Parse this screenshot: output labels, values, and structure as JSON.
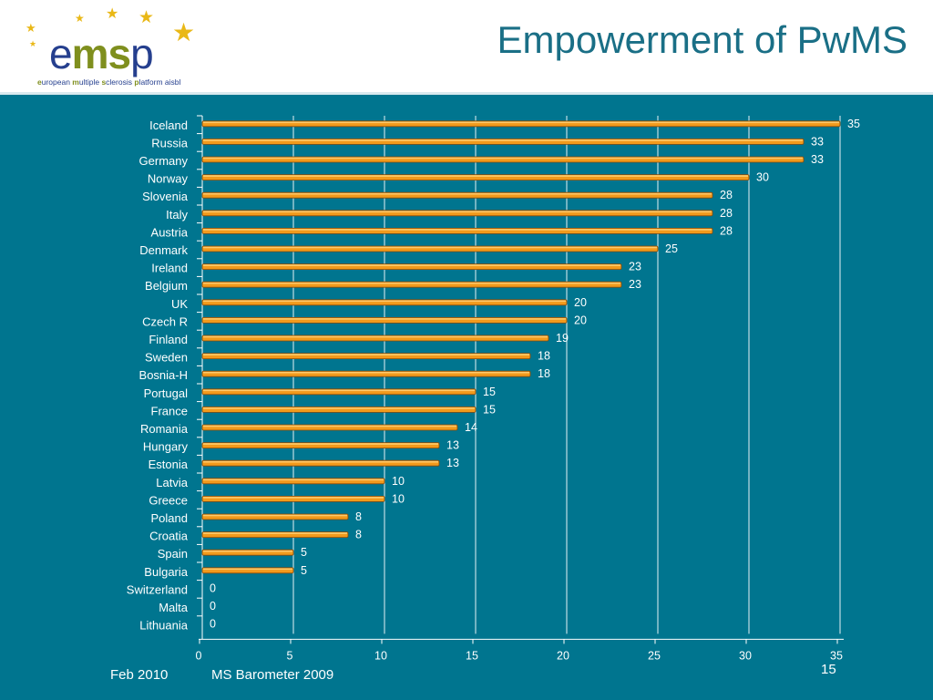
{
  "header": {
    "title": "Empowerment of PwMS",
    "logo": {
      "part_e": "e",
      "part_ms": "ms",
      "part_p": "p",
      "tagline": [
        {
          "b": "e",
          "t": "uropean "
        },
        {
          "b": "m",
          "t": "ultiple "
        },
        {
          "b": "s",
          "t": "clerosis "
        },
        {
          "b": "p",
          "t": "latform aisbl"
        }
      ],
      "star_icon": "star-icon"
    }
  },
  "footer": {
    "date": "Feb 2010",
    "source": "MS Barometer 2009",
    "page_number": "15"
  },
  "colors": {
    "background": "#00758f",
    "bar_fill": "#f29a1c",
    "bar_border": "#8a4a08",
    "accent_green": "#7f8f1e",
    "accent_blue": "#253f8e",
    "star": "#e9b817"
  },
  "chart_data": {
    "type": "bar",
    "orientation": "horizontal",
    "categories": [
      "Iceland",
      "Russia",
      "Germany",
      "Norway",
      "Slovenia",
      "Italy",
      "Austria",
      "Denmark",
      "Ireland",
      "Belgium",
      "UK",
      "Czech R",
      "Finland",
      "Sweden",
      "Bosnia-H",
      "Portugal",
      "France",
      "Romania",
      "Hungary",
      "Estonia",
      "Latvia",
      "Greece",
      "Poland",
      "Croatia",
      "Spain",
      "Bulgaria",
      "Switzerland",
      "Malta",
      "Lithuania"
    ],
    "values": [
      35,
      33,
      33,
      30,
      28,
      28,
      28,
      25,
      23,
      23,
      20,
      20,
      19,
      18,
      18,
      15,
      15,
      14,
      13,
      13,
      10,
      10,
      8,
      8,
      5,
      5,
      0,
      0,
      0
    ],
    "xlim": [
      0,
      35
    ],
    "xticks": [
      0,
      5,
      10,
      15,
      20,
      25,
      30,
      35
    ],
    "grid": true,
    "data_labels": true,
    "legend": "none"
  }
}
